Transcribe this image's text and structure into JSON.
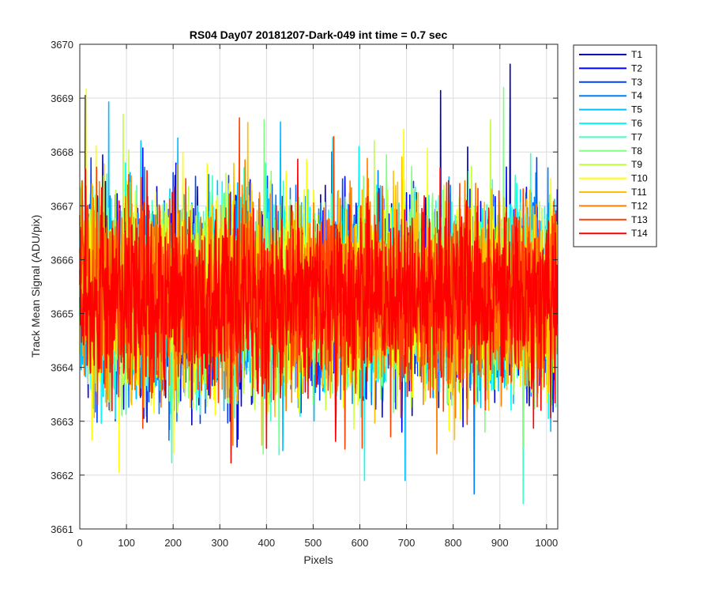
{
  "chart_data": {
    "type": "line",
    "title": "RS04 Day07 20181207-Dark-049 int time = 0.7 sec",
    "xlabel": "Pixels",
    "ylabel": "Track Mean Signal (ADU/pix)",
    "xlim": [
      0,
      1024
    ],
    "ylim": [
      3661,
      3670
    ],
    "xticks": [
      0,
      100,
      200,
      300,
      400,
      500,
      600,
      700,
      800,
      900,
      1000
    ],
    "yticks": [
      3661,
      3662,
      3663,
      3664,
      3665,
      3666,
      3667,
      3668,
      3669,
      3670
    ],
    "grid": true,
    "legend_position": "outside-top-right",
    "approx_mean": 3665.3,
    "approx_std": 0.9,
    "series": [
      {
        "name": "T1",
        "color": "#0000b4",
        "extremes": [
          {
            "x": 922,
            "y": 3669.63
          },
          {
            "x": 773,
            "y": 3669.14
          },
          {
            "x": 12,
            "y": 3669.05
          }
        ]
      },
      {
        "name": "T2",
        "color": "#0000ff",
        "extremes": [
          {
            "x": 690,
            "y": 3662.8
          }
        ]
      },
      {
        "name": "T3",
        "color": "#0040ff",
        "extremes": [
          {
            "x": 540,
            "y": 3668.0
          }
        ]
      },
      {
        "name": "T4",
        "color": "#0080ff",
        "extremes": [
          {
            "x": 845,
            "y": 3661.65
          }
        ]
      },
      {
        "name": "T5",
        "color": "#00bfff",
        "extremes": [
          {
            "x": 62,
            "y": 3668.93
          },
          {
            "x": 697,
            "y": 3661.9
          }
        ]
      },
      {
        "name": "T6",
        "color": "#00ffff",
        "extremes": [
          {
            "x": 610,
            "y": 3661.9
          }
        ]
      },
      {
        "name": "T7",
        "color": "#40ffbf",
        "extremes": [
          {
            "x": 950,
            "y": 3661.47
          }
        ]
      },
      {
        "name": "T8",
        "color": "#80ff80",
        "extremes": [
          {
            "x": 395,
            "y": 3668.6
          },
          {
            "x": 908,
            "y": 3669.2
          }
        ]
      },
      {
        "name": "T9",
        "color": "#bfff40",
        "extremes": [
          {
            "x": 880,
            "y": 3668.6
          }
        ]
      },
      {
        "name": "T10",
        "color": "#ffff00",
        "extremes": [
          {
            "x": 14,
            "y": 3669.17
          },
          {
            "x": 84,
            "y": 3662.05
          }
        ]
      },
      {
        "name": "T11",
        "color": "#ffbf00",
        "extremes": [
          {
            "x": 360,
            "y": 3668.55
          }
        ]
      },
      {
        "name": "T12",
        "color": "#ff8000",
        "extremes": [
          {
            "x": 765,
            "y": 3662.4
          }
        ]
      },
      {
        "name": "T13",
        "color": "#ff4000",
        "extremes": [
          {
            "x": 605,
            "y": 3662.5
          }
        ]
      },
      {
        "name": "T14",
        "color": "#ff0000",
        "extremes": [
          {
            "x": 400,
            "y": 3662.5
          }
        ]
      }
    ]
  }
}
